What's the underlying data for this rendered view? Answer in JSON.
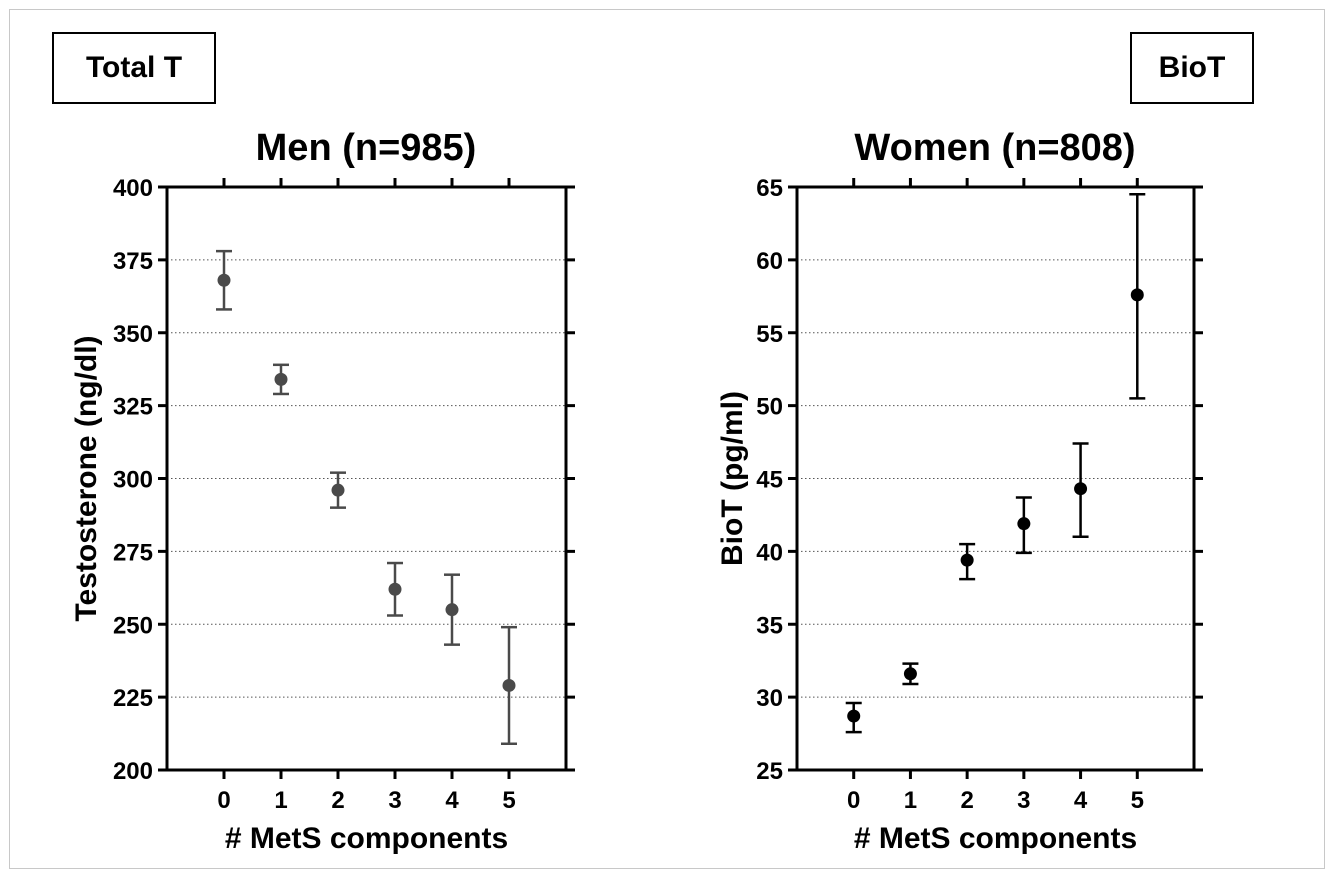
{
  "panel_tags": {
    "left": "Total T",
    "right": "BioT"
  },
  "chart_data": [
    {
      "type": "scatter",
      "title": "Men (n=985)",
      "xlabel": "# MetS components",
      "ylabel": "Testosterone (ng/dl)",
      "x": [
        0,
        1,
        2,
        3,
        4,
        5
      ],
      "xlim": [
        -1,
        6
      ],
      "ylim": [
        200,
        400
      ],
      "yticks": [
        200,
        225,
        250,
        275,
        300,
        325,
        350,
        375,
        400
      ],
      "grid": "horizontal-dotted",
      "series": [
        {
          "values": [
            368,
            334,
            296,
            262,
            255,
            229
          ],
          "error_low": [
            358,
            329,
            290,
            253,
            243,
            209
          ],
          "error_high": [
            378,
            339,
            302,
            271,
            267,
            249
          ]
        }
      ],
      "color": "#4a4a4a"
    },
    {
      "type": "scatter",
      "title": "Women (n=808)",
      "xlabel": "# MetS components",
      "ylabel": "BioT (pg/ml)",
      "x": [
        0,
        1,
        2,
        3,
        4,
        5
      ],
      "xlim": [
        -1,
        6
      ],
      "ylim": [
        25,
        65
      ],
      "yticks": [
        25,
        30,
        35,
        40,
        45,
        50,
        55,
        60,
        65
      ],
      "grid": "horizontal-dotted",
      "series": [
        {
          "values": [
            28.7,
            31.6,
            39.4,
            41.9,
            44.3,
            57.6
          ],
          "error_low": [
            27.6,
            30.9,
            38.1,
            39.9,
            41.0,
            50.5
          ],
          "error_high": [
            29.6,
            32.3,
            40.5,
            43.7,
            47.4,
            64.5
          ]
        }
      ],
      "color": "#000000"
    }
  ]
}
